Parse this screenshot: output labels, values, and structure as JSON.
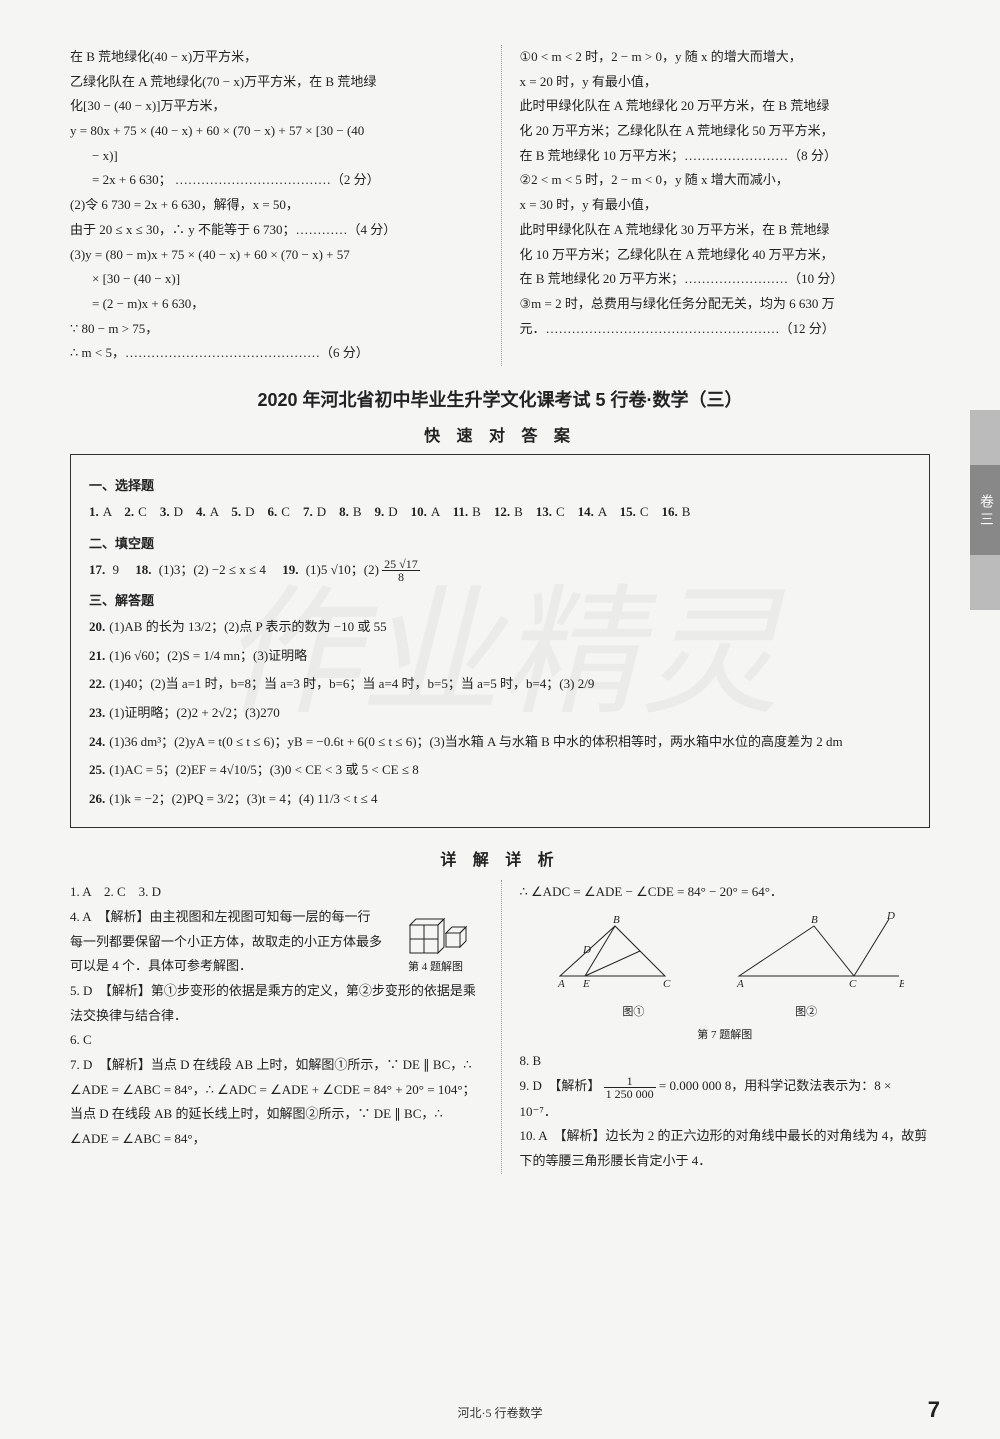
{
  "top_left": {
    "l1": "在 B 荒地绿化(40 − x)万平方米，",
    "l2": "乙绿化队在 A 荒地绿化(70 − x)万平方米，在 B 荒地绿",
    "l3": "化[30 − (40 − x)]万平方米，",
    "l4": "y = 80x + 75 × (40 − x) + 60 × (70 − x) + 57 × [30 − (40",
    "l5": "− x)]",
    "l6": "= 2x + 6 630；  ………………………………（2 分）",
    "l7": "(2)令 6 730 = 2x + 6 630，解得，x = 50，",
    "l8": "由于 20 ≤ x ≤ 30，∴ y 不能等于 6 730；…………（4 分）",
    "l9": "(3)y = (80 − m)x + 75 × (40 − x) + 60 × (70 − x) + 57",
    "l10": "× [30 − (40 − x)]",
    "l11": "= (2 − m)x + 6 630，",
    "l12": "∵ 80 − m > 75，",
    "l13": "∴ m < 5，………………………………………（6 分）"
  },
  "top_right": {
    "l1": "①0 < m < 2 时，2 − m > 0，y 随 x 的增大而增大，",
    "l2": "x = 20 时，y 有最小值，",
    "l3": "此时甲绿化队在 A 荒地绿化 20 万平方米，在 B 荒地绿",
    "l4": "化 20 万平方米；乙绿化队在 A 荒地绿化 50 万平方米，",
    "l5": "在 B 荒地绿化 10 万平方米；……………………（8 分）",
    "l6": "②2 < m < 5 时，2 − m < 0，y 随 x 增大而减小，",
    "l7": "x = 30 时，y 有最小值，",
    "l8": "此时甲绿化队在 A 荒地绿化 30 万平方米，在 B 荒地绿",
    "l9": "化 10 万平方米；乙绿化队在 A 荒地绿化 40 万平方米，",
    "l10": "在 B 荒地绿化 20 万平方米；……………………（10 分）",
    "l11": "③m = 2 时，总费用与绿化任务分配无关，均为 6 630 万",
    "l12": "元．………………………………………………（12 分）"
  },
  "title": "2020 年河北省初中毕业生升学文化课考试 5 行卷·数学（三）",
  "quick": "快 速 对 答 案",
  "section1": "一、选择题",
  "mc_line": [
    {
      "n": "1.",
      "a": "A"
    },
    {
      "n": "2.",
      "a": "C"
    },
    {
      "n": "3.",
      "a": "D"
    },
    {
      "n": "4.",
      "a": "A"
    },
    {
      "n": "5.",
      "a": "D"
    },
    {
      "n": "6.",
      "a": "C"
    },
    {
      "n": "7.",
      "a": "D"
    },
    {
      "n": "8.",
      "a": "B"
    },
    {
      "n": "9.",
      "a": "D"
    },
    {
      "n": "10.",
      "a": "A"
    },
    {
      "n": "11.",
      "a": "B"
    },
    {
      "n": "12.",
      "a": "B"
    },
    {
      "n": "13.",
      "a": "C"
    },
    {
      "n": "14.",
      "a": "A"
    },
    {
      "n": "15.",
      "a": "C"
    },
    {
      "n": "16.",
      "a": "B"
    }
  ],
  "section2": "二、填空题",
  "fill": {
    "q17": "9",
    "q18": "(1)3；(2) −2 ≤ x ≤ 4",
    "q19_1": "(1)5 √10；(2)",
    "q19_frac_n": "25 √17",
    "q19_frac_d": "8"
  },
  "section3": "三、解答题",
  "solve": {
    "q20": "(1)AB 的长为 13/2；(2)点 P 表示的数为 −10 或 55",
    "q21": "(1)6 √60；(2)S = 1/4 mn；(3)证明略",
    "q22": "(1)40；(2)当 a=1 时，b=8；当 a=3 时，b=6；当 a=4 时，b=5；当 a=5 时，b=4；(3) 2/9",
    "q23": "(1)证明略；(2)2 + 2√2；(3)270",
    "q24": "(1)36 dm³；(2)yA = t(0 ≤ t ≤ 6)；yB = −0.6t + 6(0 ≤ t ≤ 6)；(3)当水箱 A 与水箱 B 中水的体积相等时，两水箱中水位的高度差为 2 dm",
    "q25": "(1)AC = 5；(2)EF = 4√10/5；(3)0 < CE < 3 或 5 < CE ≤ 8",
    "q26": "(1)k = −2；(2)PQ = 3/2；(3)t = 4；(4) 11/3 < t ≤ 4"
  },
  "detail": "详 解 详 析",
  "dleft": {
    "l1": "1. A　2. C　3. D",
    "l4a": "4. A　【解析】由主视图和左视图可知每一层的每一行每一列都要保留一个小正方体，故取走的小正方体最多可以是 4 个．具体可参考解图．",
    "fig4cap": "第 4 题解图",
    "l5": "5. D　【解析】第①步变形的依据是乘方的定义，第②步变形的依据是乘法交换律与结合律．",
    "l6": "6. C",
    "l7": "7. D　【解析】当点 D 在线段 AB 上时，如解图①所示，∵ DE ∥ BC，∴ ∠ADE = ∠ABC = 84°，∴ ∠ADC = ∠ADE + ∠CDE = 84° + 20° = 104°；当点 D 在线段 AB 的延长线上时，如解图②所示，∵ DE ∥ BC，∴ ∠ADE = ∠ABC = 84°，"
  },
  "dright": {
    "l1": "∴ ∠ADC = ∠ADE − ∠CDE = 84° − 20° = 64°．",
    "fig7_1": "图①",
    "fig7_2": "图②",
    "fig7cap": "第 7 题解图",
    "l8": "8. B",
    "l9a": "9. D　【解析】",
    "l9frac_n": "1",
    "l9frac_d": "1 250 000",
    "l9b": " = 0.000 000 8，用科学记数法表示为：8 × 10⁻⁷．",
    "l10": "10. A　【解析】边长为 2 的正六边形的对角线中最长的对角线为 4，故剪下的等腰三角形腰长肯定小于 4．"
  },
  "side_tab": "卷  三",
  "footer": "河北·5 行卷数学",
  "page": "7",
  "watermark": "作业精灵",
  "colors": {
    "text": "#222222",
    "box_border": "#333333",
    "divider": "#999999",
    "bg": "#f5f5f3",
    "tab_light": "#bbbbbb",
    "tab_dark": "#888888"
  }
}
